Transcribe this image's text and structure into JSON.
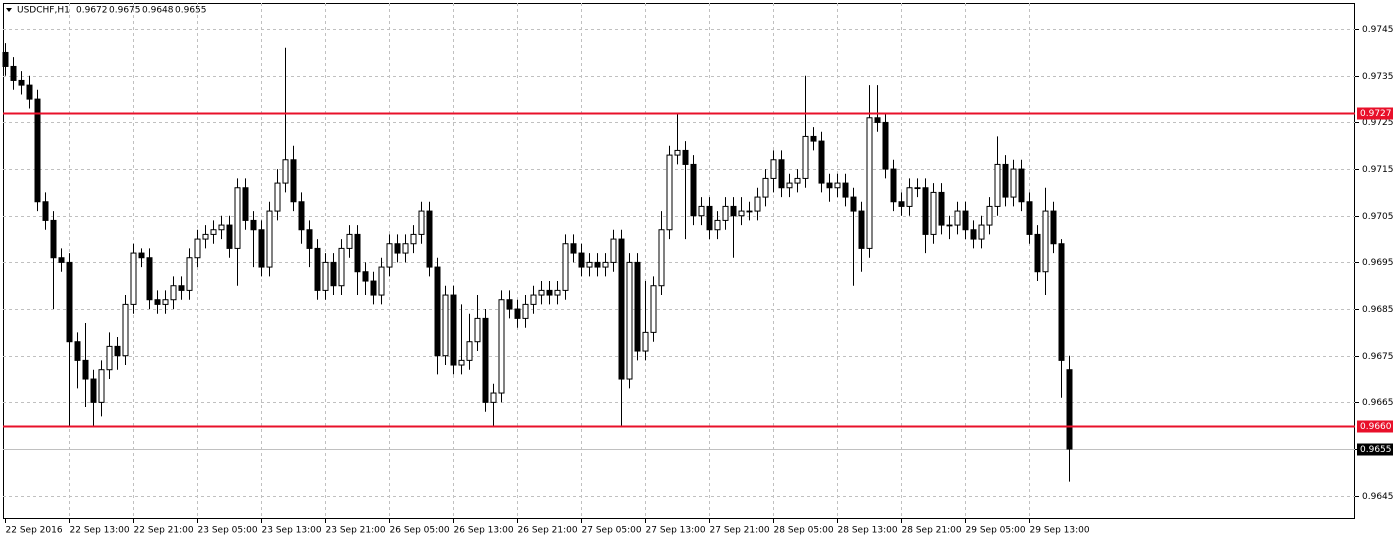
{
  "chart_data": {
    "type": "candlestick",
    "symbol": "USDCHF,H1",
    "categories": [
      "22 Sep 2016",
      null,
      null,
      null,
      null,
      null,
      null,
      null,
      "22 Sep 13:00",
      null,
      null,
      null,
      null,
      null,
      null,
      null,
      "22 Sep 21:00",
      null,
      null,
      null,
      null,
      null,
      null,
      null,
      "23 Sep 05:00",
      null,
      null,
      null,
      null,
      null,
      null,
      null,
      "23 Sep 13:00",
      null,
      null,
      null,
      null,
      null,
      null,
      null,
      "23 Sep 21:00",
      null,
      null,
      null,
      null,
      null,
      null,
      null,
      "26 Sep 05:00",
      null,
      null,
      null,
      null,
      null,
      null,
      null,
      "26 Sep 13:00",
      null,
      null,
      null,
      null,
      null,
      null,
      null,
      "26 Sep 21:00",
      null,
      null,
      null,
      null,
      null,
      null,
      null,
      "27 Sep 05:00",
      null,
      null,
      null,
      null,
      null,
      null,
      null,
      "27 Sep 13:00",
      null,
      null,
      null,
      null,
      null,
      null,
      null,
      "27 Sep 21:00",
      null,
      null,
      null,
      null,
      null,
      null,
      null,
      "28 Sep 05:00",
      null,
      null,
      null,
      null,
      null,
      null,
      null,
      "28 Sep 13:00",
      null,
      null,
      null,
      null,
      null,
      null,
      null,
      "28 Sep 21:00",
      null,
      null,
      null,
      null,
      null,
      null,
      null,
      "29 Sep 05:00",
      null,
      null,
      null,
      null,
      null,
      null,
      null,
      "29 Sep 13:00",
      null,
      null,
      null,
      null,
      null
    ],
    "open": [
      0.974,
      0.9737,
      0.9734,
      0.9733,
      0.973,
      0.9708,
      0.9704,
      0.9696,
      0.9695,
      0.9678,
      0.9674,
      0.967,
      0.9665,
      0.9672,
      0.9677,
      0.9675,
      0.9686,
      0.9697,
      0.9696,
      0.9687,
      0.9686,
      0.9687,
      0.969,
      0.9689,
      0.9696,
      0.97,
      0.9701,
      0.9702,
      0.9703,
      0.9698,
      0.9711,
      0.9704,
      0.9702,
      0.9694,
      0.9706,
      0.9712,
      0.9717,
      0.9708,
      0.9702,
      0.9698,
      0.9689,
      0.9695,
      0.969,
      0.9698,
      0.9701,
      0.9693,
      0.9691,
      0.9688,
      0.9694,
      0.9699,
      0.9697,
      0.9699,
      0.9701,
      0.9706,
      0.9694,
      0.9675,
      0.9688,
      0.9673,
      0.9674,
      0.9678,
      0.9683,
      0.9665,
      0.9667,
      0.9687,
      0.9685,
      0.9683,
      0.9686,
      0.9688,
      0.9689,
      0.9688,
      0.9689,
      0.9699,
      0.9697,
      0.9694,
      0.9695,
      0.9694,
      0.9695,
      0.97,
      0.967,
      0.9695,
      0.9676,
      0.968,
      0.969,
      0.9702,
      0.9718,
      0.9719,
      0.9716,
      0.9705,
      0.9707,
      0.9702,
      0.9704,
      0.9707,
      0.9705,
      0.9706,
      0.9706,
      0.9709,
      0.9713,
      0.9717,
      0.9711,
      0.9712,
      0.9713,
      0.9722,
      0.9721,
      0.9712,
      0.9711,
      0.9712,
      0.9709,
      0.9706,
      0.9698,
      0.9726,
      0.9725,
      0.9715,
      0.9708,
      0.9707,
      0.9711,
      0.9711,
      0.9701,
      0.971,
      0.9703,
      0.9703,
      0.9706,
      0.9702,
      0.97,
      0.9703,
      0.9707,
      0.9716,
      0.9709,
      0.9715,
      0.9708,
      0.9701,
      0.9693,
      0.9706,
      0.9699,
      0.9672
    ],
    "high": [
      0.9742,
      0.9739,
      0.9736,
      0.9735,
      0.9732,
      0.971,
      0.9706,
      0.9698,
      0.9697,
      0.968,
      0.9682,
      0.9672,
      0.9674,
      0.968,
      0.9679,
      0.9688,
      0.9699,
      0.9698,
      0.9698,
      0.9689,
      0.9689,
      0.9692,
      0.9692,
      0.9698,
      0.9702,
      0.9703,
      0.9704,
      0.9705,
      0.9705,
      0.9713,
      0.9713,
      0.9706,
      0.9704,
      0.9708,
      0.9715,
      0.9741,
      0.972,
      0.971,
      0.9704,
      0.97,
      0.9697,
      0.9697,
      0.97,
      0.9703,
      0.9703,
      0.9695,
      0.9693,
      0.9696,
      0.9701,
      0.9701,
      0.9701,
      0.9703,
      0.9708,
      0.9708,
      0.9696,
      0.969,
      0.969,
      0.9686,
      0.9684,
      0.9688,
      0.9685,
      0.9669,
      0.9689,
      0.9689,
      0.9687,
      0.9688,
      0.969,
      0.9691,
      0.9691,
      0.9691,
      0.9701,
      0.9701,
      0.9699,
      0.9697,
      0.9697,
      0.9697,
      0.9702,
      0.9702,
      0.9697,
      0.9697,
      0.9691,
      0.9692,
      0.9706,
      0.972,
      0.9727,
      0.9721,
      0.9718,
      0.9709,
      0.9709,
      0.9706,
      0.9709,
      0.9709,
      0.9709,
      0.9708,
      0.9711,
      0.9715,
      0.9719,
      0.9719,
      0.9714,
      0.9715,
      0.9735,
      0.9724,
      0.9723,
      0.9714,
      0.9714,
      0.9714,
      0.9711,
      0.9708,
      0.9733,
      0.9733,
      0.9727,
      0.9717,
      0.971,
      0.9713,
      0.9713,
      0.9713,
      0.9712,
      0.9712,
      0.9705,
      0.9708,
      0.9708,
      0.9704,
      0.9705,
      0.9709,
      0.9722,
      0.9718,
      0.9717,
      0.9717,
      0.971,
      0.9703,
      0.9711,
      0.9708,
      0.97,
      0.9675
    ],
    "low": [
      0.9735,
      0.9732,
      0.9731,
      0.9728,
      0.9706,
      0.9702,
      0.9685,
      0.9693,
      0.966,
      0.9668,
      0.9664,
      0.966,
      0.9662,
      0.967,
      0.9672,
      0.9673,
      0.9684,
      0.9694,
      0.9685,
      0.9684,
      0.9684,
      0.9685,
      0.9687,
      0.9687,
      0.9694,
      0.9698,
      0.9699,
      0.97,
      0.9696,
      0.969,
      0.9702,
      0.9694,
      0.9692,
      0.9692,
      0.9704,
      0.971,
      0.9706,
      0.9699,
      0.9694,
      0.9687,
      0.9687,
      0.9688,
      0.9688,
      0.9696,
      0.9688,
      0.9688,
      0.9686,
      0.9686,
      0.9692,
      0.9695,
      0.9695,
      0.9697,
      0.9699,
      0.9692,
      0.9671,
      0.9673,
      0.9671,
      0.9671,
      0.9672,
      0.9676,
      0.9663,
      0.966,
      0.9665,
      0.9683,
      0.9681,
      0.9681,
      0.9684,
      0.9686,
      0.9686,
      0.9686,
      0.9687,
      0.9695,
      0.9692,
      0.9692,
      0.9692,
      0.9692,
      0.9693,
      0.966,
      0.9668,
      0.9674,
      0.9674,
      0.9678,
      0.9688,
      0.97,
      0.9716,
      0.97,
      0.9703,
      0.9703,
      0.97,
      0.97,
      0.9702,
      0.9696,
      0.9703,
      0.9704,
      0.9704,
      0.9707,
      0.971,
      0.9709,
      0.9709,
      0.971,
      0.9711,
      0.9719,
      0.971,
      0.9708,
      0.9709,
      0.9707,
      0.969,
      0.9693,
      0.9696,
      0.9723,
      0.9713,
      0.9706,
      0.9705,
      0.9705,
      0.9709,
      0.9697,
      0.9699,
      0.9701,
      0.97,
      0.9701,
      0.97,
      0.9698,
      0.9698,
      0.9701,
      0.9705,
      0.9707,
      0.9707,
      0.9706,
      0.9699,
      0.9691,
      0.9688,
      0.9697,
      0.9666,
      0.9648
    ],
    "close": [
      0.9737,
      0.9734,
      0.9733,
      0.973,
      0.9708,
      0.9704,
      0.9696,
      0.9695,
      0.9678,
      0.9674,
      0.967,
      0.9665,
      0.9672,
      0.9677,
      0.9675,
      0.9686,
      0.9697,
      0.9696,
      0.9687,
      0.9686,
      0.9687,
      0.969,
      0.9689,
      0.9696,
      0.97,
      0.9701,
      0.9702,
      0.9703,
      0.9698,
      0.9711,
      0.9704,
      0.9702,
      0.9694,
      0.9706,
      0.9712,
      0.9717,
      0.9708,
      0.9702,
      0.9698,
      0.9689,
      0.9695,
      0.969,
      0.9698,
      0.9701,
      0.9693,
      0.9691,
      0.9688,
      0.9694,
      0.9699,
      0.9697,
      0.9699,
      0.9701,
      0.9706,
      0.9694,
      0.9675,
      0.9688,
      0.9673,
      0.9674,
      0.9678,
      0.9683,
      0.9665,
      0.9667,
      0.9687,
      0.9685,
      0.9683,
      0.9686,
      0.9688,
      0.9689,
      0.9688,
      0.9689,
      0.9699,
      0.9697,
      0.9694,
      0.9695,
      0.9694,
      0.9695,
      0.97,
      0.967,
      0.9695,
      0.9676,
      0.968,
      0.969,
      0.9702,
      0.9718,
      0.9719,
      0.9716,
      0.9705,
      0.9707,
      0.9702,
      0.9704,
      0.9707,
      0.9705,
      0.9706,
      0.9706,
      0.9709,
      0.9713,
      0.9717,
      0.9711,
      0.9712,
      0.9713,
      0.9722,
      0.9721,
      0.9712,
      0.9711,
      0.9712,
      0.9709,
      0.9706,
      0.9698,
      0.9726,
      0.9725,
      0.9715,
      0.9708,
      0.9707,
      0.9711,
      0.9711,
      0.9701,
      0.971,
      0.9703,
      0.9703,
      0.9706,
      0.9702,
      0.97,
      0.9703,
      0.9707,
      0.9716,
      0.9709,
      0.9715,
      0.9708,
      0.9701,
      0.9693,
      0.9706,
      0.9699,
      0.9674,
      0.9655
    ],
    "up_color": "#ffffff",
    "down_color": "#000000",
    "wick_color": "#000000",
    "ylim": [
      0.964,
      0.97506
    ],
    "yticks": [
      0.9645,
      0.9655,
      0.9665,
      0.9675,
      0.9685,
      0.9695,
      0.9705,
      0.9715,
      0.9725,
      0.9735,
      0.9745
    ],
    "grid": true,
    "hlines": [
      {
        "value": 0.9727,
        "color": "#e8102a"
      },
      {
        "value": 0.966,
        "label": "0.9660",
        "color": "#e8102a"
      }
    ],
    "bid_line_color": "#c0c0c0"
  }
}
